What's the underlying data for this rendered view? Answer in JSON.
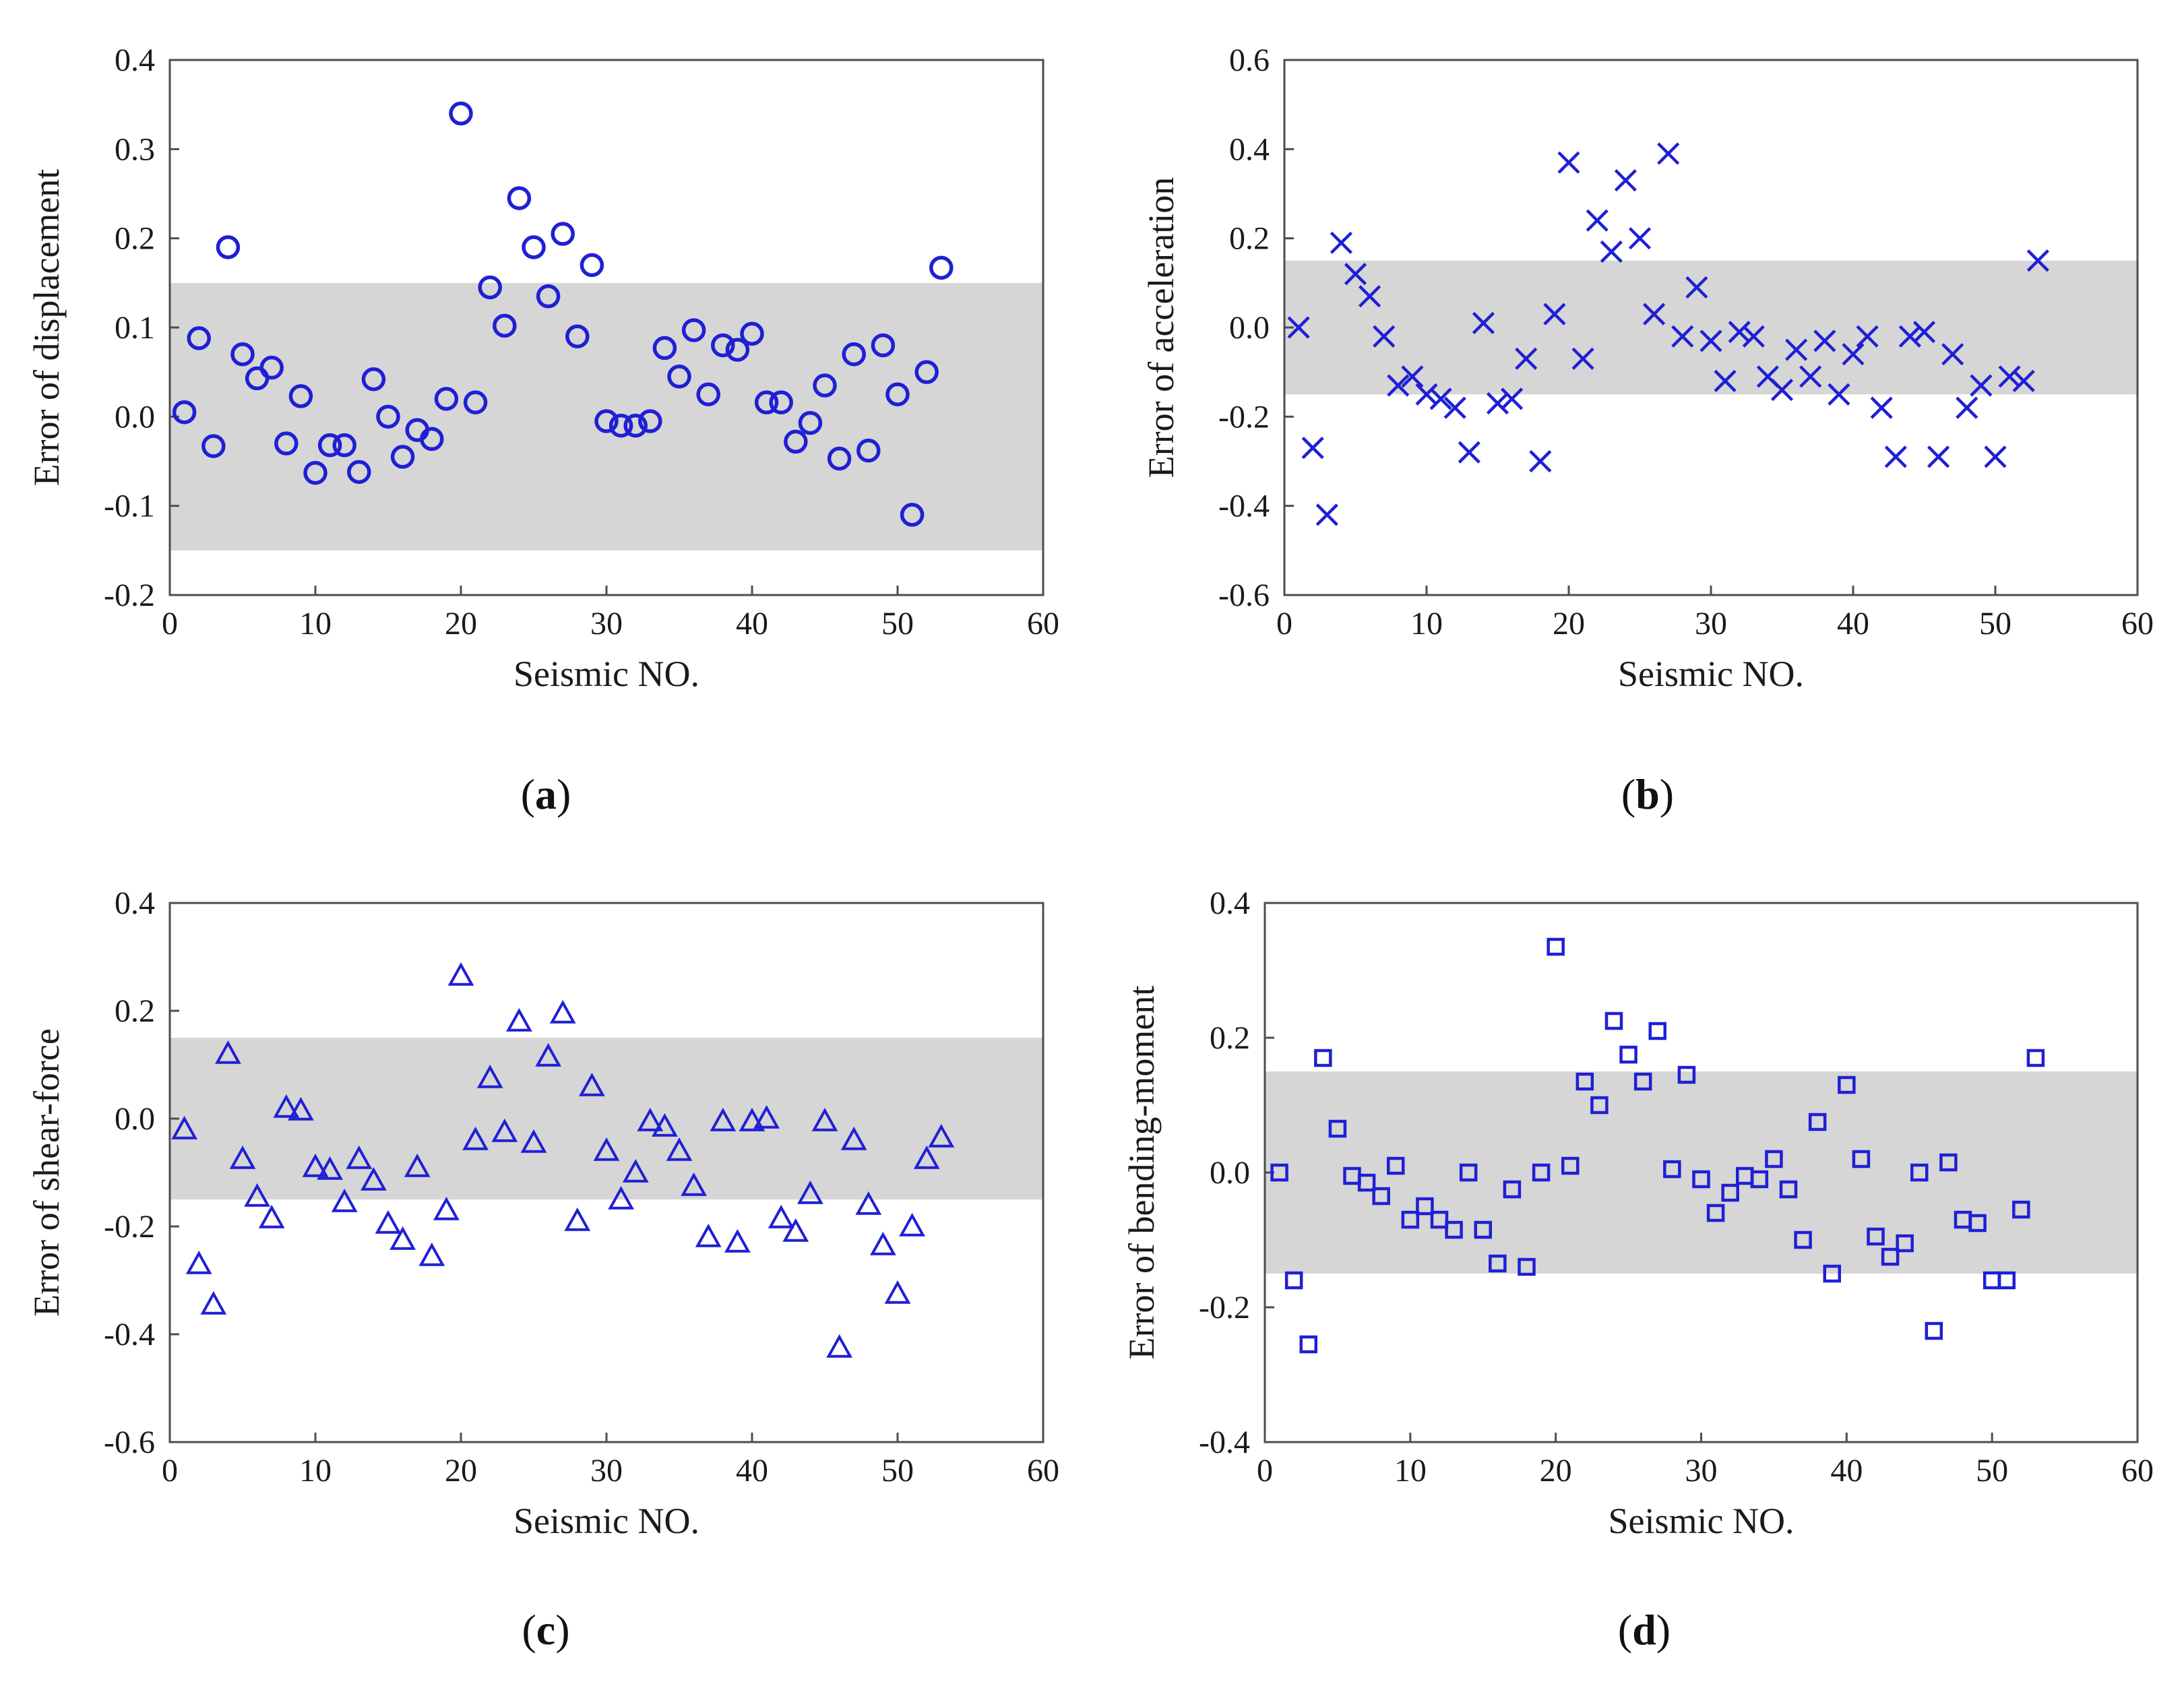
{
  "colors": {
    "marker": "#1f1fd6",
    "band": "#d6d6d6",
    "axis": "#4d4d4d",
    "text": "#1a1a1a"
  },
  "chart_data": [
    {
      "type": "scatter",
      "panel": "(a)",
      "caption_letter": "a",
      "marker": "circle",
      "title": "",
      "xlabel": "Seismic NO.",
      "ylabel": "Error of displacement",
      "xlim": [
        0,
        60
      ],
      "ylim": [
        -0.2,
        0.4
      ],
      "xticks": [
        "0",
        "10",
        "20",
        "30",
        "40",
        "50",
        "60"
      ],
      "yticks": [
        "-0.2",
        "-0.1",
        "0.0",
        "0.1",
        "0.2",
        "0.3",
        "0.4"
      ],
      "band": [
        -0.15,
        0.15
      ],
      "x": [
        1,
        2,
        3,
        4,
        5,
        6,
        7,
        8,
        9,
        10,
        11,
        12,
        13,
        14,
        15,
        16,
        17,
        18,
        19,
        20,
        21,
        22,
        23,
        24,
        25,
        26,
        27,
        28,
        29,
        30,
        31,
        32,
        33,
        34,
        35,
        36,
        37,
        38,
        39,
        40,
        41,
        42,
        43,
        44,
        45,
        46,
        47,
        48,
        49,
        50,
        51,
        52,
        53
      ],
      "y": [
        0.005,
        0.088,
        -0.033,
        0.19,
        0.07,
        0.043,
        0.055,
        -0.03,
        0.023,
        -0.063,
        -0.032,
        -0.032,
        -0.062,
        0.042,
        0.0,
        -0.045,
        -0.015,
        -0.025,
        0.02,
        0.34,
        0.016,
        0.145,
        0.102,
        0.245,
        0.19,
        0.135,
        0.205,
        0.09,
        0.17,
        -0.005,
        -0.01,
        -0.01,
        -0.005,
        0.077,
        0.045,
        0.097,
        0.025,
        0.08,
        0.075,
        0.093,
        0.016,
        0.016,
        -0.028,
        -0.007,
        0.035,
        -0.047,
        0.07,
        -0.038,
        0.08,
        0.025,
        -0.11,
        0.05,
        0.167
      ]
    },
    {
      "type": "scatter",
      "panel": "(b)",
      "caption_letter": "b",
      "marker": "cross",
      "title": "",
      "xlabel": "Seismic NO.",
      "ylabel": "Error of acceleration",
      "xlim": [
        0,
        60
      ],
      "ylim": [
        -0.6,
        0.6
      ],
      "xticks": [
        "0",
        "10",
        "20",
        "30",
        "40",
        "50",
        "60"
      ],
      "yticks": [
        "-0.6",
        "-0.4",
        "-0.2",
        "0.0",
        "0.2",
        "0.4",
        "0.6"
      ],
      "band": [
        -0.15,
        0.15
      ],
      "x": [
        1,
        2,
        3,
        4,
        5,
        6,
        7,
        8,
        9,
        10,
        11,
        12,
        13,
        14,
        15,
        16,
        17,
        18,
        19,
        20,
        21,
        22,
        23,
        24,
        25,
        26,
        27,
        28,
        29,
        30,
        31,
        32,
        33,
        34,
        35,
        36,
        37,
        38,
        39,
        40,
        41,
        42,
        43,
        44,
        45,
        46,
        47,
        48,
        49,
        50,
        51,
        52,
        53
      ],
      "y": [
        0.0,
        -0.27,
        -0.42,
        0.19,
        0.12,
        0.07,
        -0.02,
        -0.13,
        -0.11,
        -0.15,
        -0.16,
        -0.18,
        -0.28,
        0.01,
        -0.17,
        -0.16,
        -0.07,
        -0.3,
        0.03,
        0.37,
        -0.07,
        0.24,
        0.17,
        0.33,
        0.2,
        0.03,
        0.39,
        -0.02,
        0.09,
        -0.03,
        -0.12,
        -0.01,
        -0.02,
        -0.11,
        -0.14,
        -0.05,
        -0.11,
        -0.03,
        -0.15,
        -0.06,
        -0.02,
        -0.18,
        -0.29,
        -0.02,
        -0.01,
        -0.29,
        -0.06,
        -0.18,
        -0.13,
        -0.29,
        -0.11,
        -0.12,
        0.15
      ]
    },
    {
      "type": "scatter",
      "panel": "(c)",
      "caption_letter": "c",
      "marker": "triangle",
      "title": "",
      "xlabel": "Seismic NO.",
      "ylabel": "Error of shear-force",
      "xlim": [
        0,
        60
      ],
      "ylim": [
        -0.6,
        0.4
      ],
      "xticks": [
        "0",
        "10",
        "20",
        "30",
        "40",
        "50",
        "60"
      ],
      "yticks": [
        "-0.6",
        "-0.4",
        "-0.2",
        "0.0",
        "0.2",
        "0.4"
      ],
      "band": [
        -0.15,
        0.15
      ],
      "x": [
        1,
        2,
        3,
        4,
        5,
        6,
        7,
        8,
        9,
        10,
        11,
        12,
        13,
        14,
        15,
        16,
        17,
        18,
        19,
        20,
        21,
        22,
        23,
        24,
        25,
        26,
        27,
        28,
        29,
        30,
        31,
        32,
        33,
        34,
        35,
        36,
        37,
        38,
        39,
        40,
        41,
        42,
        43,
        44,
        45,
        46,
        47,
        48,
        49,
        50,
        51,
        52,
        53
      ],
      "y": [
        -0.02,
        -0.27,
        -0.345,
        0.12,
        -0.075,
        -0.145,
        -0.185,
        0.02,
        0.015,
        -0.09,
        -0.095,
        -0.155,
        -0.075,
        -0.115,
        -0.195,
        -0.225,
        -0.09,
        -0.255,
        -0.17,
        0.265,
        -0.04,
        0.075,
        -0.025,
        0.18,
        -0.045,
        0.115,
        0.195,
        -0.19,
        0.06,
        -0.06,
        -0.15,
        -0.1,
        -0.005,
        -0.015,
        -0.06,
        -0.125,
        -0.22,
        -0.005,
        -0.23,
        -0.005,
        0.0,
        -0.185,
        -0.21,
        -0.14,
        -0.005,
        -0.425,
        -0.04,
        -0.16,
        -0.235,
        -0.325,
        -0.2,
        -0.075,
        -0.035
      ]
    },
    {
      "type": "scatter",
      "panel": "(d)",
      "caption_letter": "d",
      "marker": "square",
      "title": "",
      "xlabel": "Seismic NO.",
      "ylabel": "Error of bending-moment",
      "xlim": [
        0,
        60
      ],
      "ylim": [
        -0.4,
        0.4
      ],
      "xticks": [
        "0",
        "10",
        "20",
        "30",
        "40",
        "50",
        "60"
      ],
      "yticks": [
        "-0.4",
        "-0.2",
        "0.0",
        "0.2",
        "0.4"
      ],
      "band": [
        -0.15,
        0.15
      ],
      "x": [
        1,
        2,
        3,
        4,
        5,
        6,
        7,
        8,
        9,
        10,
        11,
        12,
        13,
        14,
        15,
        16,
        17,
        18,
        19,
        20,
        21,
        22,
        23,
        24,
        25,
        26,
        27,
        28,
        29,
        30,
        31,
        32,
        33,
        34,
        35,
        36,
        37,
        38,
        39,
        40,
        41,
        42,
        43,
        44,
        45,
        46,
        47,
        48,
        49,
        50,
        51,
        52,
        53
      ],
      "y": [
        0.0,
        -0.16,
        -0.255,
        0.17,
        0.065,
        -0.005,
        -0.015,
        -0.035,
        0.01,
        -0.07,
        -0.05,
        -0.07,
        -0.085,
        0.0,
        -0.085,
        -0.135,
        -0.025,
        -0.14,
        0.0,
        0.335,
        0.01,
        0.135,
        0.1,
        0.225,
        0.175,
        0.135,
        0.21,
        0.005,
        0.145,
        -0.01,
        -0.06,
        -0.03,
        -0.005,
        -0.01,
        0.02,
        -0.025,
        -0.1,
        0.075,
        -0.15,
        0.13,
        0.02,
        -0.095,
        -0.125,
        -0.105,
        0.0,
        -0.235,
        0.015,
        -0.07,
        -0.075,
        -0.16,
        -0.16,
        -0.055,
        0.17
      ]
    }
  ]
}
